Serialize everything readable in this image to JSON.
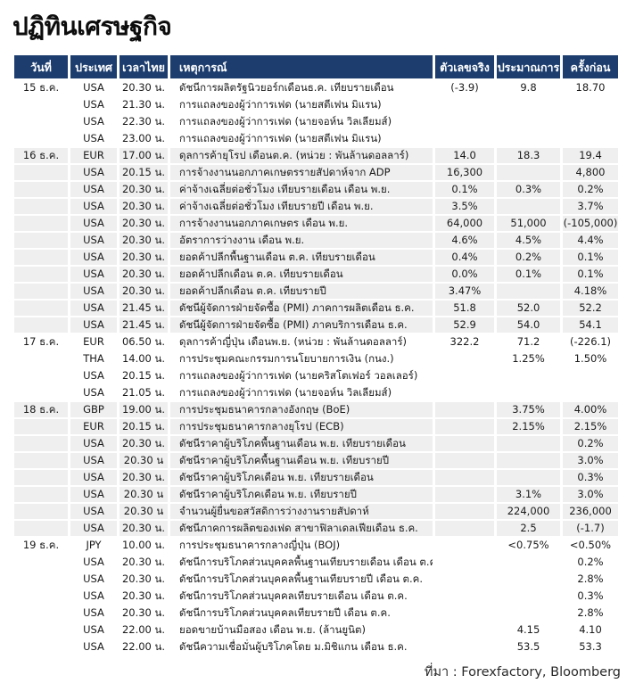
{
  "page_title": "ปฏิทินเศรษฐกิจ",
  "source_note": "ที่มา : Forexfactory, Bloomberg",
  "colors": {
    "header_bg": "#1c3d6e",
    "stripe_bg": "#efeff0",
    "header_text": "#ffffff",
    "body_text": "#1a1a1a"
  },
  "table": {
    "columns": [
      "วันที่",
      "ประเทศ",
      "เวลาไทย",
      "เหตุการณ์",
      "ตัวเลขจริง",
      "ประมาณการ",
      "ครั้งก่อน"
    ],
    "rows": [
      {
        "date": "15 ธ.ค.",
        "country": "USA",
        "time": "20.30 น.",
        "event": "ดัชนีการผลิตรัฐนิวยอร์กเดือนธ.ค. เทียบรายเดือน",
        "actual": "(-3.9)",
        "forecast": "9.8",
        "previous": "18.70",
        "shaded": false
      },
      {
        "date": "",
        "country": "USA",
        "time": "21.30 น.",
        "event": "การแถลงของผู้ว่าการเฟด (นายสตีเฟน มิแรน)",
        "actual": "",
        "forecast": "",
        "previous": "",
        "shaded": false
      },
      {
        "date": "",
        "country": "USA",
        "time": "22.30 น.",
        "event": "การแถลงของผู้ว่าการเฟด (นายจอห์น วิลเลียมส์)",
        "actual": "",
        "forecast": "",
        "previous": "",
        "shaded": false
      },
      {
        "date": "",
        "country": "USA",
        "time": "23.00 น.",
        "event": "การแถลงของผู้ว่าการเฟด (นายสตีเฟน มิแรน)",
        "actual": "",
        "forecast": "",
        "previous": "",
        "shaded": false
      },
      {
        "date": "16 ธ.ค.",
        "country": "EUR",
        "time": "17.00 น.",
        "event": "ดุลการค้ายุโรป เดือนต.ค. (หน่วย : พันล้านดอลลาร์)",
        "actual": "14.0",
        "forecast": "18.3",
        "previous": "19.4",
        "shaded": true
      },
      {
        "date": "",
        "country": "USA",
        "time": "20.15 น.",
        "event": "การจ้างงานนอกภาคเกษตรรายสัปดาห์จาก ADP",
        "actual": "16,300",
        "forecast": "",
        "previous": "4,800",
        "shaded": true
      },
      {
        "date": "",
        "country": "USA",
        "time": "20.30 น.",
        "event": "ค่าจ้างเฉลี่ยต่อชั่วโมง เทียบรายเดือน เดือน พ.ย.",
        "actual": "0.1%",
        "forecast": "0.3%",
        "previous": "0.2%",
        "shaded": true
      },
      {
        "date": "",
        "country": "USA",
        "time": "20.30 น.",
        "event": "ค่าจ้างเฉลี่ยต่อชั่วโมง เทียบรายปี เดือน พ.ย.",
        "actual": "3.5%",
        "forecast": "",
        "previous": "3.7%",
        "shaded": true
      },
      {
        "date": "",
        "country": "USA",
        "time": "20.30 น.",
        "event": "การจ้างงานนอกภาคเกษตร เดือน พ.ย.",
        "actual": "64,000",
        "forecast": "51,000",
        "previous": "(-105,000)",
        "shaded": true
      },
      {
        "date": "",
        "country": "USA",
        "time": "20.30 น.",
        "event": "อัตราการว่างงาน เดือน พ.ย.",
        "actual": "4.6%",
        "forecast": "4.5%",
        "previous": "4.4%",
        "shaded": true
      },
      {
        "date": "",
        "country": "USA",
        "time": "20.30 น.",
        "event": "ยอดค้าปลีกพื้นฐานเดือน ต.ค. เทียบรายเดือน",
        "actual": "0.4%",
        "forecast": "0.2%",
        "previous": "0.1%",
        "shaded": true
      },
      {
        "date": "",
        "country": "USA",
        "time": "20.30 น.",
        "event": "ยอดค้าปลีกเดือน ต.ค. เทียบรายเดือน",
        "actual": "0.0%",
        "forecast": "0.1%",
        "previous": "0.1%",
        "shaded": true
      },
      {
        "date": "",
        "country": "USA",
        "time": "20.30 น.",
        "event": "ยอดค้าปลีกเดือน ต.ค. เทียบรายปี",
        "actual": "3.47%",
        "forecast": "",
        "previous": "4.18%",
        "shaded": true
      },
      {
        "date": "",
        "country": "USA",
        "time": "21.45 น.",
        "event": "ดัชนีผู้จัดการฝ่ายจัดซื้อ (PMI) ภาคการผลิตเดือน ธ.ค.",
        "actual": "51.8",
        "forecast": "52.0",
        "previous": "52.2",
        "shaded": true
      },
      {
        "date": "",
        "country": "USA",
        "time": "21.45 น.",
        "event": "ดัชนีผู้จัดการฝ่ายจัดซื้อ (PMI) ภาคบริการเดือน ธ.ค.",
        "actual": "52.9",
        "forecast": "54.0",
        "previous": "54.1",
        "shaded": true
      },
      {
        "date": "17 ธ.ค.",
        "country": "EUR",
        "time": "06.50 น.",
        "event": "ดุลการค้าญี่ปุ่น เดือนพ.ย. (หน่วย : พันล้านดอลลาร์)",
        "actual": "322.2",
        "forecast": "71.2",
        "previous": "(-226.1)",
        "shaded": false
      },
      {
        "date": "",
        "country": "THA",
        "time": "14.00 น.",
        "event": "การประชุมคณะกรรมการนโยบายการเงิน (กนง.)",
        "actual": "",
        "forecast": "1.25%",
        "previous": "1.50%",
        "shaded": false
      },
      {
        "date": "",
        "country": "USA",
        "time": "20.15 น.",
        "event": "การแถลงของผู้ว่าการเฟด (นายคริสโตเฟอร์ วอลเลอร์)",
        "actual": "",
        "forecast": "",
        "previous": "",
        "shaded": false
      },
      {
        "date": "",
        "country": "USA",
        "time": "21.05 น.",
        "event": "การแถลงของผู้ว่าการเฟด (นายจอห์น วิลเลียมส์)",
        "actual": "",
        "forecast": "",
        "previous": "",
        "shaded": false
      },
      {
        "date": "18 ธ.ค.",
        "country": "GBP",
        "time": "19.00 น.",
        "event": "การประชุมธนาคารกลางอังกฤษ (BoE)",
        "actual": "",
        "forecast": "3.75%",
        "previous": "4.00%",
        "shaded": true
      },
      {
        "date": "",
        "country": "EUR",
        "time": "20.15 น.",
        "event": "การประชุมธนาคารกลางยุโรป (ECB)",
        "actual": "",
        "forecast": "2.15%",
        "previous": "2.15%",
        "shaded": true
      },
      {
        "date": "",
        "country": "USA",
        "time": "20.30 น.",
        "event": "ดัชนีราคาผู้บริโภคพื้นฐานเดือน พ.ย. เทียบรายเดือน",
        "actual": "",
        "forecast": "",
        "previous": "0.2%",
        "shaded": true
      },
      {
        "date": "",
        "country": "USA",
        "time": "20.30 น",
        "event": "ดัชนีราคาผู้บริโภคพื้นฐานเดือน พ.ย. เทียบรายปี",
        "actual": "",
        "forecast": "",
        "previous": "3.0%",
        "shaded": true
      },
      {
        "date": "",
        "country": "USA",
        "time": "20.30 น.",
        "event": "ดัชนีราคาผู้บริโภคเดือน พ.ย. เทียบรายเดือน",
        "actual": "",
        "forecast": "",
        "previous": "0.3%",
        "shaded": true
      },
      {
        "date": "",
        "country": "USA",
        "time": "20.30 น",
        "event": "ดัชนีราคาผู้บริโภคเดือน พ.ย. เทียบรายปี",
        "actual": "",
        "forecast": "3.1%",
        "previous": "3.0%",
        "shaded": true
      },
      {
        "date": "",
        "country": "USA",
        "time": "20.30 น",
        "event": "จำนวนผู้ยื่นขอสวัสดิการว่างงานรายสัปดาห์",
        "actual": "",
        "forecast": "224,000",
        "previous": "236,000",
        "shaded": true
      },
      {
        "date": "",
        "country": "USA",
        "time": "20.30 น.",
        "event": "ดัชนีภาคการผลิตของเฟด สาขาฟิลาเดลเฟียเดือน ธ.ค.",
        "actual": "",
        "forecast": "2.5",
        "previous": "(-1.7)",
        "shaded": true
      },
      {
        "date": "19 ธ.ค.",
        "country": "JPY",
        "time": "10.00 น.",
        "event": "การประชุมธนาคารกลางญี่ปุ่น (BOJ)",
        "actual": "",
        "forecast": "<0.75%",
        "previous": "<0.50%",
        "shaded": false
      },
      {
        "date": "",
        "country": "USA",
        "time": "20.30 น.",
        "event": "ดัชนีการบริโภคส่วนบุคคลพื้นฐานเทียบรายเดือน เดือน ต.ค.",
        "actual": "",
        "forecast": "",
        "previous": "0.2%",
        "shaded": false
      },
      {
        "date": "",
        "country": "USA",
        "time": "20.30 น.",
        "event": "ดัชนีการบริโภคส่วนบุคคลพื้นฐานเทียบรายปี เดือน ต.ค.",
        "actual": "",
        "forecast": "",
        "previous": "2.8%",
        "shaded": false
      },
      {
        "date": "",
        "country": "USA",
        "time": "20.30 น.",
        "event": "ดัชนีการบริโภคส่วนบุคคลเทียบรายเดือน เดือน ต.ค.",
        "actual": "",
        "forecast": "",
        "previous": "0.3%",
        "shaded": false
      },
      {
        "date": "",
        "country": "USA",
        "time": "20.30 น.",
        "event": "ดัชนีการบริโภคส่วนบุคคลเทียบรายปี เดือน ต.ค.",
        "actual": "",
        "forecast": "",
        "previous": "2.8%",
        "shaded": false
      },
      {
        "date": "",
        "country": "USA",
        "time": "22.00 น.",
        "event": "ยอดขายบ้านมือสอง เดือน พ.ย. (ล้านยูนิต)",
        "actual": "",
        "forecast": "4.15",
        "previous": "4.10",
        "shaded": false
      },
      {
        "date": "",
        "country": "USA",
        "time": "22.00 น.",
        "event": "ดัชนีความเชื่อมั่นผู้บริโภคโดย ม.มิชิแกน เดือน ธ.ค.",
        "actual": "",
        "forecast": "53.5",
        "previous": "53.3",
        "shaded": false
      }
    ]
  }
}
